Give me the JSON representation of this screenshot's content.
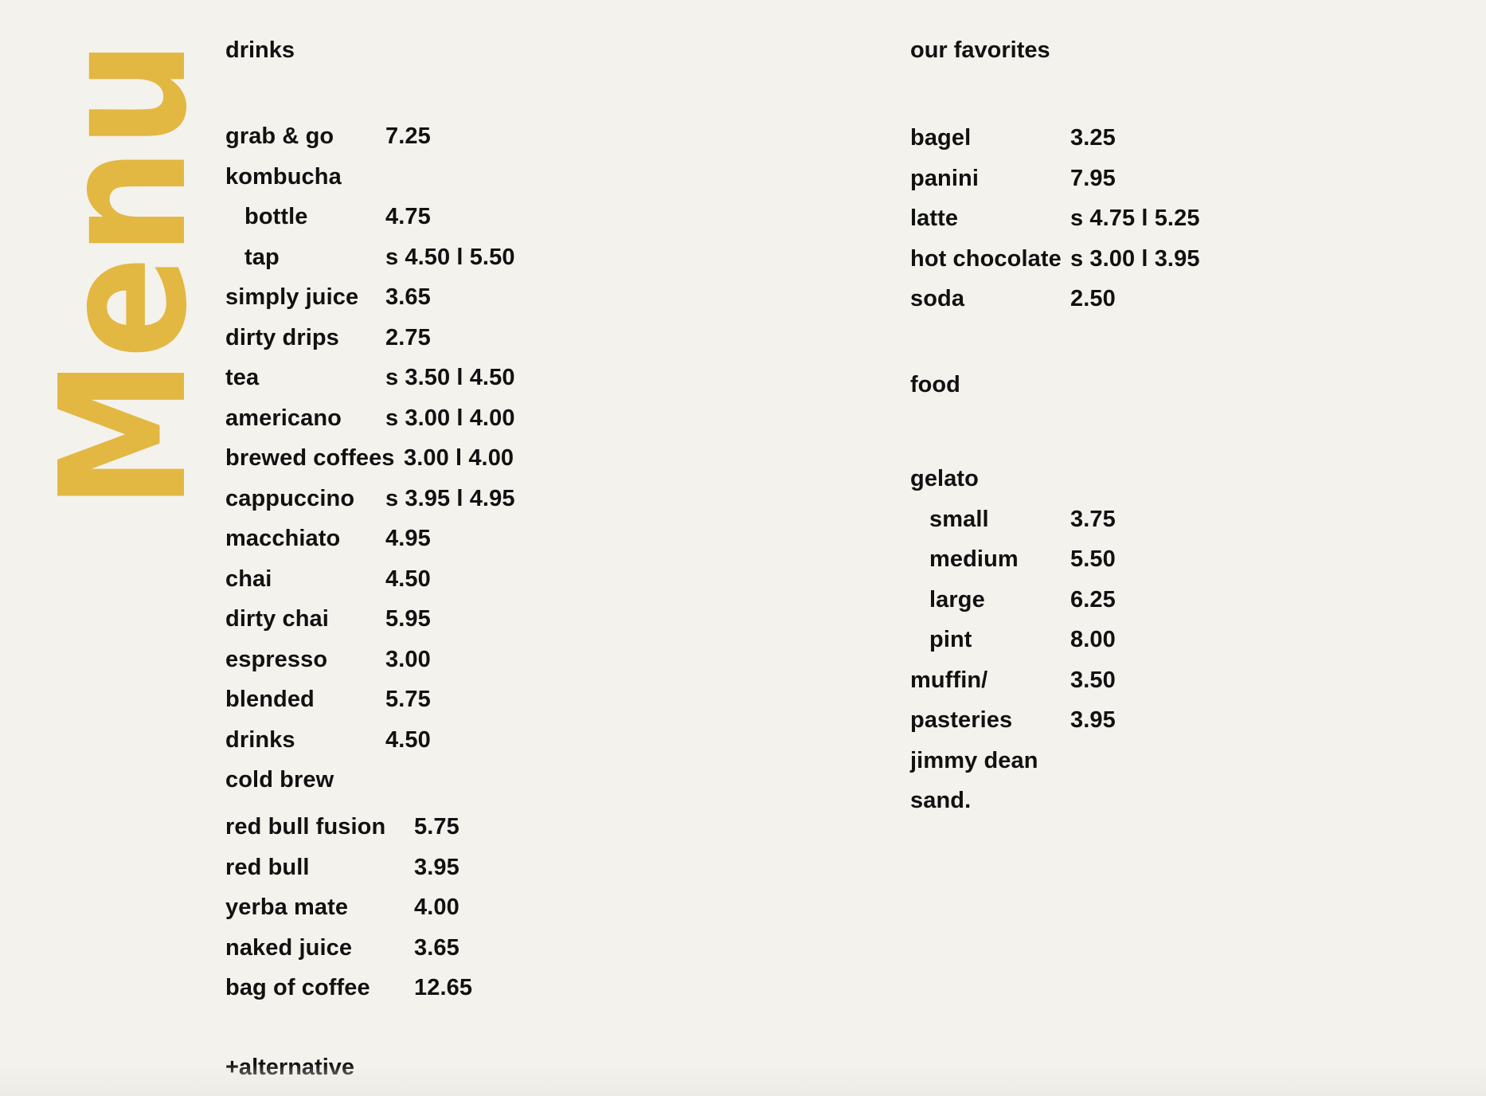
{
  "title": "Menu",
  "colors": {
    "title": "#e2b843",
    "text": "#111111",
    "background": "#f4f2ec"
  },
  "left": {
    "heading": "drinks",
    "items": [
      {
        "name": "grab & go",
        "price": "7.25"
      },
      {
        "name": "kombucha",
        "price": ""
      },
      {
        "name": "bottle",
        "price": "4.75",
        "indent": true
      },
      {
        "name": "tap",
        "price": "s 4.50 l 5.50",
        "indent": true
      },
      {
        "name": "simply juice",
        "price": "3.65"
      },
      {
        "name": "dirty drips",
        "price": "2.75"
      },
      {
        "name": "tea",
        "price": "s 3.50 l 4.50"
      },
      {
        "name": "americano",
        "price": "s 3.00 l 4.00"
      },
      {
        "name": "brewed coffees",
        "price": "3.00 l 4.00",
        "tight": true
      },
      {
        "name": "cappuccino",
        "price": "s 3.95 l 4.95"
      },
      {
        "name": "macchiato",
        "price": "4.95"
      },
      {
        "name": "chai",
        "price": "4.50"
      },
      {
        "name": "dirty chai",
        "price": "5.95"
      },
      {
        "name": "espresso",
        "price": "3.00"
      },
      {
        "name": "blended",
        "price": "5.75"
      },
      {
        "name": "drinks",
        "price": "4.50"
      },
      {
        "name": "cold brew",
        "price": ""
      }
    ],
    "extras": [
      {
        "name": "red bull fusion",
        "price": "5.75"
      },
      {
        "name": "red bull",
        "price": "3.95"
      },
      {
        "name": "yerba mate",
        "price": "4.00"
      },
      {
        "name": "naked juice",
        "price": "3.65"
      },
      {
        "name": "bag of coffee",
        "price": "12.65"
      }
    ],
    "footer": "+alternative"
  },
  "right": {
    "favorites_heading": "our favorites",
    "favorites": [
      {
        "name": "bagel",
        "price": "3.25"
      },
      {
        "name": "panini",
        "price": "7.95"
      },
      {
        "name": "latte",
        "price": "s 4.75 l 5.25"
      },
      {
        "name": "hot chocolate",
        "price": "s 3.00 l 3.95"
      },
      {
        "name": "soda",
        "price": "2.50"
      }
    ],
    "food_heading": "food",
    "food": [
      {
        "name": "gelato",
        "price": ""
      },
      {
        "name": "small",
        "price": "3.75",
        "indent": true
      },
      {
        "name": "medium",
        "price": "5.50",
        "indent": true
      },
      {
        "name": "large",
        "price": "6.25",
        "indent": true
      },
      {
        "name": "pint",
        "price": "8.00",
        "indent": true
      },
      {
        "name": "muffin/",
        "price": "3.50"
      },
      {
        "name": "pasteries",
        "price": "3.95"
      },
      {
        "name": "jimmy dean",
        "price": ""
      },
      {
        "name": "sand.",
        "price": ""
      }
    ]
  }
}
